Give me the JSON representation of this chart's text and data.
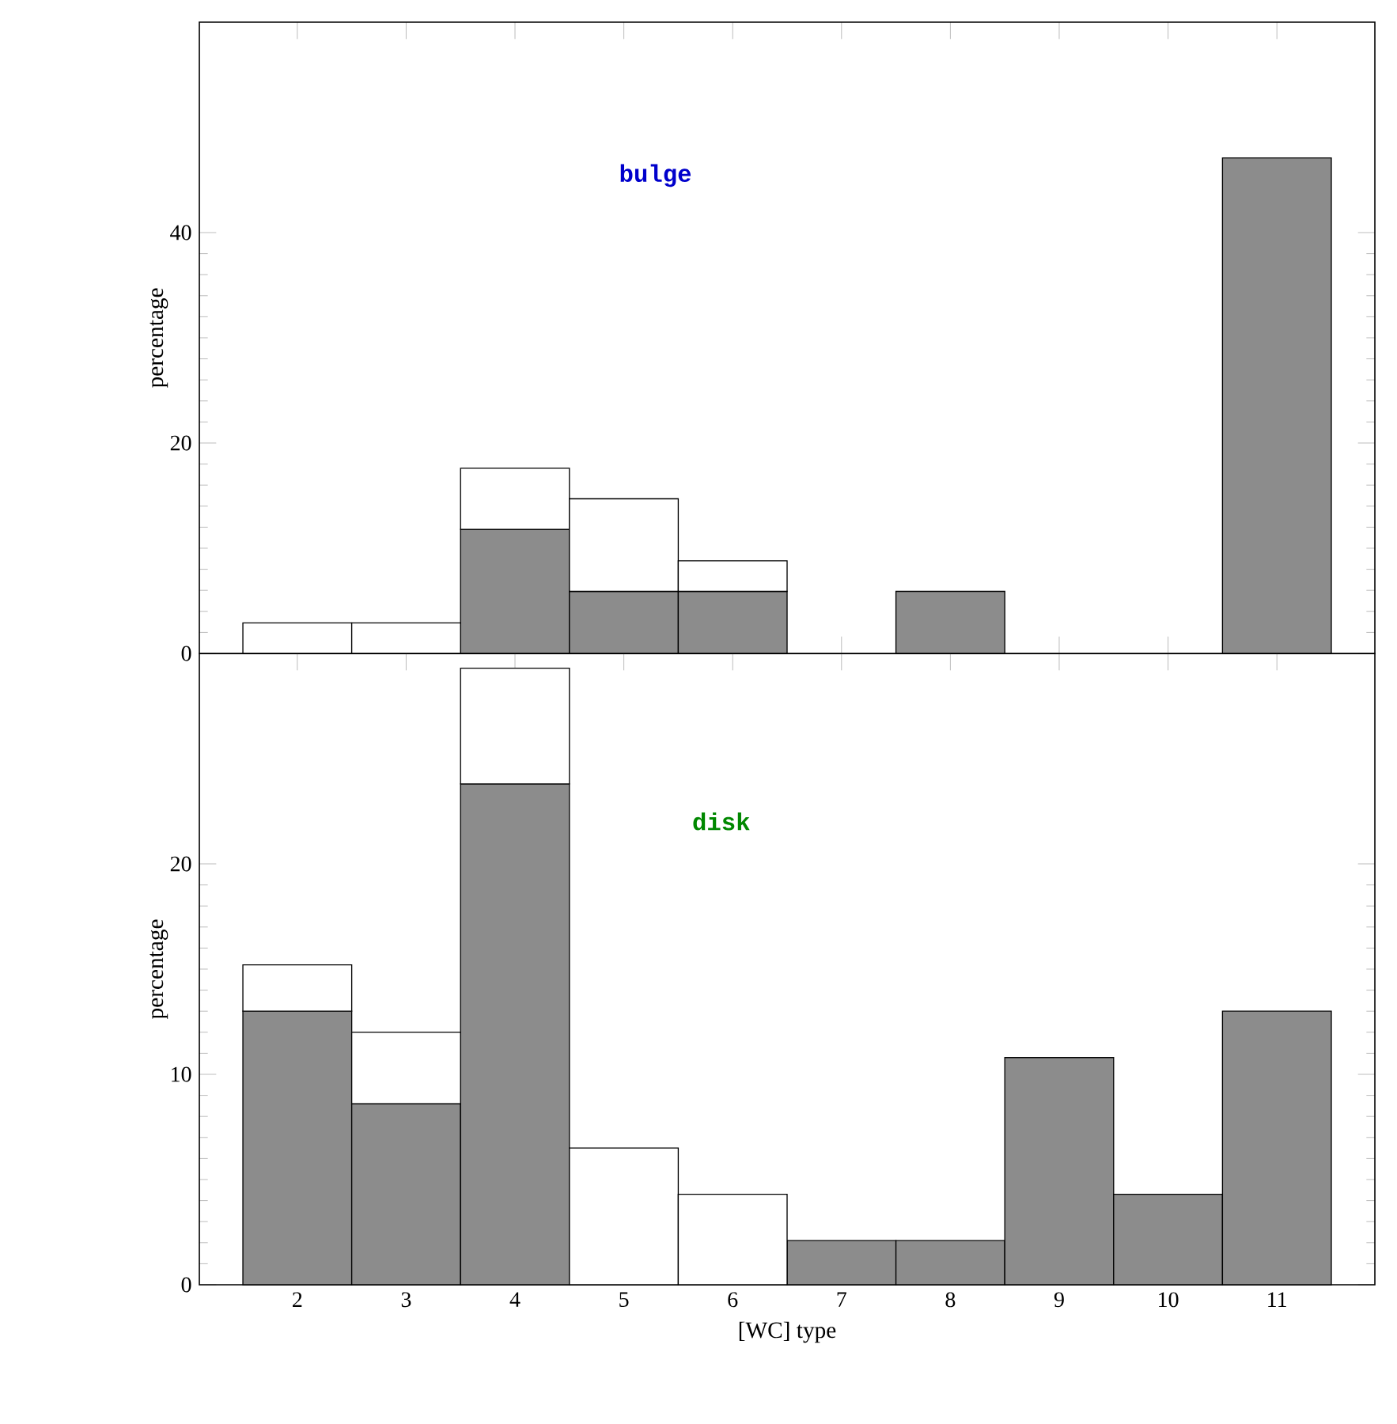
{
  "chart_data": [
    {
      "type": "bar",
      "stacked": true,
      "x": [
        2,
        3,
        4,
        5,
        6,
        7,
        8,
        9,
        10,
        11
      ],
      "series": [
        {
          "color": "#8c8c8c",
          "values": [
            null,
            null,
            11.8,
            5.9,
            5.9,
            null,
            5.9,
            null,
            null,
            47.1
          ]
        },
        {
          "color": "#ffffff",
          "values": [
            2.9,
            2.9,
            5.8,
            8.8,
            2.9,
            null,
            null,
            null,
            null,
            null
          ]
        }
      ],
      "xlim": [
        1.1,
        11.9
      ],
      "ylim": [
        0,
        60
      ],
      "xticks": [
        2,
        3,
        4,
        5,
        6,
        7,
        8,
        9,
        10,
        11
      ],
      "yticks": [
        0,
        20,
        40
      ],
      "tick_labels": "y",
      "ylabel": "percentage",
      "annotations": [
        "bulge"
      ]
    },
    {
      "type": "bar",
      "stacked": true,
      "x": [
        2,
        3,
        4,
        5,
        6,
        7,
        8,
        9,
        10,
        11
      ],
      "series": [
        {
          "color": "#8c8c8c",
          "values": [
            13.0,
            8.6,
            23.8,
            null,
            null,
            2.1,
            2.1,
            10.8,
            4.3,
            13.0
          ]
        },
        {
          "color": "#ffffff",
          "values": [
            2.2,
            3.4,
            5.5,
            6.5,
            4.3,
            null,
            null,
            null,
            null,
            null
          ]
        }
      ],
      "xlim": [
        1.1,
        11.9
      ],
      "ylim": [
        0,
        30
      ],
      "xticks": [
        2,
        3,
        4,
        5,
        6,
        7,
        8,
        9,
        10,
        11
      ],
      "yticks": [
        0,
        10,
        20
      ],
      "xlabel": "[WC] type",
      "ylabel": "percentage",
      "annotations": [
        "disk"
      ]
    }
  ]
}
